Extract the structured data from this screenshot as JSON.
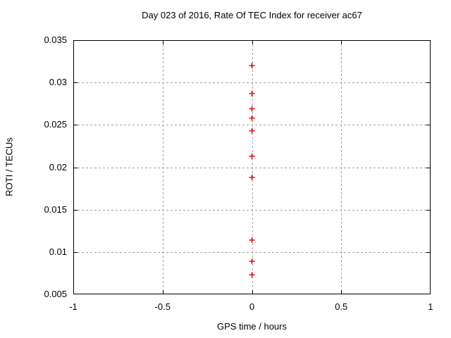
{
  "chart_data": {
    "type": "scatter",
    "title": "Day 023 of 2016, Rate Of TEC Index for receiver ac67",
    "xlabel": "GPS time / hours",
    "ylabel": "ROTI / TECUs",
    "xlim": [
      -1,
      1
    ],
    "ylim": [
      0.005,
      0.035
    ],
    "x_ticks": [
      -1,
      -0.5,
      0,
      0.5,
      1
    ],
    "x_tick_labels": [
      "-1",
      "-0.5",
      "0",
      "0.5",
      "1"
    ],
    "y_ticks": [
      0.005,
      0.01,
      0.015,
      0.02,
      0.025,
      0.03,
      0.035
    ],
    "y_tick_labels": [
      "0.005",
      "0.01",
      "0.015",
      "0.02",
      "0.025",
      "0.03",
      "0.035"
    ],
    "grid": true,
    "legend": "none",
    "series": [
      {
        "name": "ROTI",
        "marker": "plus",
        "color": "#ff0000",
        "points": [
          {
            "x": 0,
            "y": 0.032
          },
          {
            "x": 0,
            "y": 0.0287
          },
          {
            "x": 0,
            "y": 0.0269
          },
          {
            "x": 0,
            "y": 0.0258
          },
          {
            "x": 0,
            "y": 0.0243
          },
          {
            "x": 0,
            "y": 0.0213
          },
          {
            "x": 0,
            "y": 0.0188
          },
          {
            "x": 0,
            "y": 0.0114
          },
          {
            "x": 0,
            "y": 0.0089
          },
          {
            "x": 0,
            "y": 0.0073
          }
        ]
      }
    ],
    "colors": {
      "background": "#ffffff",
      "border": "#000000",
      "grid": "#a0a0a0",
      "marker": "#ff0000",
      "text": "#000000"
    }
  }
}
